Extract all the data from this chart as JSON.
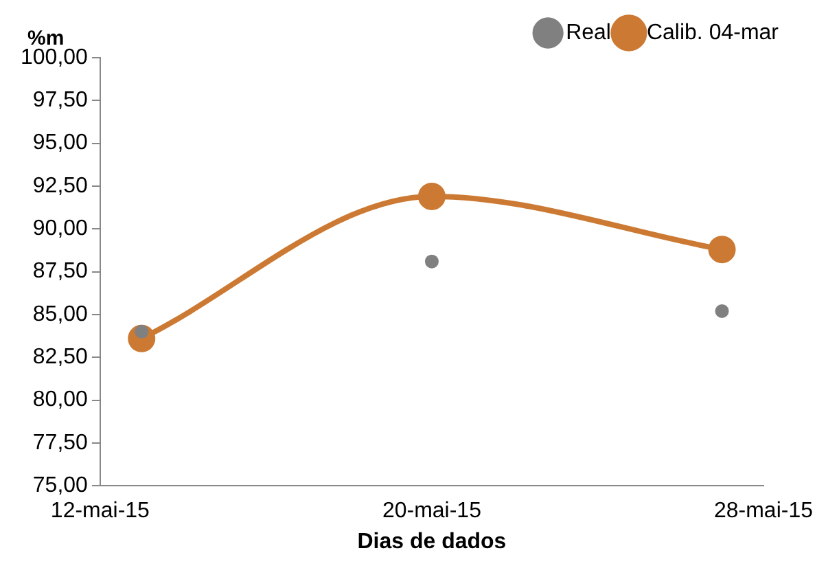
{
  "chart_data": {
    "type": "line",
    "xlabel": "Dias de dados",
    "ylabel": "%m",
    "x": [
      "--05-13",
      "--05-20",
      "--05-27"
    ],
    "series": [
      {
        "name": "Calib. 04-mar",
        "type": "line",
        "color": "#cc7a33",
        "marker": "circle",
        "values": [
          83.6,
          91.9,
          88.8
        ]
      },
      {
        "name": "Real",
        "type": "scatter",
        "color": "#808080",
        "marker": "circle",
        "values": [
          84.0,
          88.1,
          85.2
        ]
      }
    ],
    "xlim": [
      "--05-12",
      "--05-28"
    ],
    "xticks": [
      {
        "value": "--05-12",
        "label": "12-mai-15"
      },
      {
        "value": "--05-20",
        "label": "20-mai-15"
      },
      {
        "value": "--05-28",
        "label": "28-mai-15"
      }
    ],
    "ylim": [
      75,
      100
    ],
    "yticks": [
      {
        "value": 75,
        "label": "75,00"
      },
      {
        "value": 77.5,
        "label": "77,50"
      },
      {
        "value": 80,
        "label": "80,00"
      },
      {
        "value": 82.5,
        "label": "82,50"
      },
      {
        "value": 85,
        "label": "85,00"
      },
      {
        "value": 87.5,
        "label": "87,50"
      },
      {
        "value": 90,
        "label": "90,00"
      },
      {
        "value": 92.5,
        "label": "92,50"
      },
      {
        "value": 95,
        "label": "95,00"
      },
      {
        "value": 97.5,
        "label": "97,50"
      },
      {
        "value": 100,
        "label": "100,00"
      }
    ],
    "grid": false,
    "legend": "top right"
  }
}
